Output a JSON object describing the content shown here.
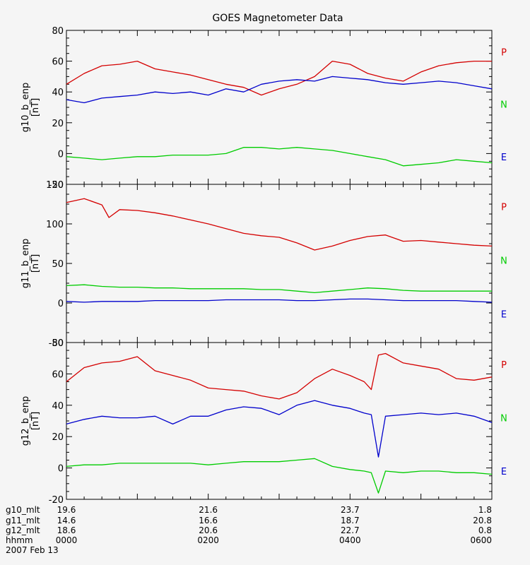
{
  "chart_data": [
    {
      "type": "line",
      "title": "GOES Magnetometer Data",
      "ylabel": "g10_b_enp",
      "yunit": "[nT]",
      "ylim": [
        -20,
        80
      ],
      "yticks": [
        -20,
        0,
        20,
        40,
        60,
        80
      ],
      "xlim": [
        0,
        6
      ],
      "series": [
        {
          "name": "P",
          "color": "#d40000",
          "x": [
            0,
            0.25,
            0.5,
            0.75,
            1,
            1.25,
            1.5,
            1.75,
            2,
            2.25,
            2.5,
            2.75,
            3,
            3.25,
            3.5,
            3.75,
            4,
            4.25,
            4.5,
            4.75,
            5,
            5.25,
            5.5,
            5.75,
            6
          ],
          "values": [
            45,
            52,
            57,
            58,
            60,
            55,
            53,
            51,
            48,
            45,
            43,
            38,
            42,
            45,
            50,
            60,
            58,
            52,
            49,
            47,
            53,
            57,
            59,
            60,
            60
          ]
        },
        {
          "name": "N",
          "color": "#00cc00",
          "x": [
            0,
            0.25,
            0.5,
            0.75,
            1,
            1.25,
            1.5,
            1.75,
            2,
            2.25,
            2.5,
            2.75,
            3,
            3.25,
            3.5,
            3.75,
            4,
            4.25,
            4.5,
            4.75,
            5,
            5.25,
            5.5,
            5.75,
            6
          ],
          "values": [
            -2,
            -3,
            -4,
            -3,
            -2,
            -2,
            -1,
            -1,
            -1,
            0,
            4,
            4,
            3,
            4,
            3,
            2,
            0,
            -2,
            -4,
            -8,
            -7,
            -6,
            -4,
            -5,
            -6
          ]
        },
        {
          "name": "E",
          "color": "#0000cc",
          "x": [
            0,
            0.25,
            0.5,
            0.75,
            1,
            1.25,
            1.5,
            1.75,
            2,
            2.25,
            2.5,
            2.75,
            3,
            3.25,
            3.5,
            3.75,
            4,
            4.25,
            4.5,
            4.75,
            5,
            5.25,
            5.5,
            5.75,
            6
          ],
          "values": [
            35,
            33,
            36,
            37,
            38,
            40,
            39,
            40,
            38,
            42,
            40,
            45,
            47,
            48,
            47,
            50,
            49,
            48,
            46,
            45,
            46,
            47,
            46,
            44,
            42
          ]
        }
      ]
    },
    {
      "type": "line",
      "ylabel": "g11_b_enp",
      "yunit": "[nT]",
      "ylim": [
        -50,
        150
      ],
      "yticks": [
        -50,
        0,
        50,
        100,
        150
      ],
      "xlim": [
        0,
        6
      ],
      "series": [
        {
          "name": "P",
          "color": "#d40000",
          "x": [
            0,
            0.25,
            0.5,
            0.6,
            0.75,
            1,
            1.25,
            1.5,
            1.75,
            2,
            2.25,
            2.5,
            2.75,
            3,
            3.25,
            3.5,
            3.75,
            4,
            4.25,
            4.5,
            4.75,
            5,
            5.25,
            5.5,
            5.75,
            6
          ],
          "values": [
            127,
            132,
            124,
            108,
            118,
            117,
            114,
            110,
            105,
            100,
            94,
            88,
            85,
            83,
            76,
            67,
            72,
            79,
            84,
            86,
            78,
            79,
            77,
            75,
            73,
            72
          ]
        },
        {
          "name": "N",
          "color": "#00cc00",
          "x": [
            0,
            0.25,
            0.5,
            0.75,
            1,
            1.25,
            1.5,
            1.75,
            2,
            2.25,
            2.5,
            2.75,
            3,
            3.25,
            3.5,
            3.75,
            4,
            4.25,
            4.5,
            4.75,
            5,
            5.25,
            5.5,
            5.75,
            6
          ],
          "values": [
            22,
            23,
            21,
            20,
            20,
            19,
            19,
            18,
            18,
            18,
            18,
            17,
            17,
            15,
            13,
            15,
            17,
            19,
            18,
            16,
            15,
            15,
            15,
            15,
            15
          ]
        },
        {
          "name": "E",
          "color": "#0000cc",
          "x": [
            0,
            0.25,
            0.5,
            0.75,
            1,
            1.25,
            1.5,
            1.75,
            2,
            2.25,
            2.5,
            2.75,
            3,
            3.25,
            3.5,
            3.75,
            4,
            4.25,
            4.5,
            4.75,
            5,
            5.25,
            5.5,
            5.75,
            6
          ],
          "values": [
            2,
            1,
            2,
            2,
            2,
            3,
            3,
            3,
            3,
            4,
            4,
            4,
            4,
            3,
            3,
            4,
            5,
            5,
            4,
            3,
            3,
            3,
            3,
            2,
            1
          ]
        }
      ]
    },
    {
      "type": "line",
      "ylabel": "g12_b_enp",
      "yunit": "[nT]",
      "ylim": [
        -20,
        80
      ],
      "yticks": [
        -20,
        0,
        20,
        40,
        60,
        80
      ],
      "xlim": [
        0,
        6
      ],
      "series": [
        {
          "name": "P",
          "color": "#d40000",
          "x": [
            0,
            0.25,
            0.5,
            0.75,
            1,
            1.25,
            1.5,
            1.75,
            2,
            2.25,
            2.5,
            2.75,
            3,
            3.25,
            3.5,
            3.75,
            4,
            4.2,
            4.3,
            4.4,
            4.5,
            4.75,
            5,
            5.25,
            5.5,
            5.75,
            6
          ],
          "values": [
            55,
            64,
            67,
            68,
            71,
            62,
            59,
            56,
            51,
            50,
            49,
            46,
            44,
            48,
            57,
            63,
            59,
            55,
            50,
            72,
            73,
            67,
            65,
            63,
            57,
            56,
            58
          ]
        },
        {
          "name": "N",
          "color": "#00cc00",
          "x": [
            0,
            0.25,
            0.5,
            0.75,
            1,
            1.25,
            1.5,
            1.75,
            2,
            2.25,
            2.5,
            2.75,
            3,
            3.25,
            3.5,
            3.75,
            4,
            4.2,
            4.3,
            4.4,
            4.5,
            4.75,
            5,
            5.25,
            5.5,
            5.75,
            6
          ],
          "values": [
            1,
            2,
            2,
            3,
            3,
            3,
            3,
            3,
            2,
            3,
            4,
            4,
            4,
            5,
            6,
            1,
            -1,
            -2,
            -3,
            -16,
            -2,
            -3,
            -2,
            -2,
            -3,
            -3,
            -4
          ]
        },
        {
          "name": "E",
          "color": "#0000cc",
          "x": [
            0,
            0.25,
            0.5,
            0.75,
            1,
            1.25,
            1.5,
            1.75,
            2,
            2.25,
            2.5,
            2.75,
            3,
            3.25,
            3.5,
            3.75,
            4,
            4.2,
            4.3,
            4.4,
            4.5,
            4.75,
            5,
            5.25,
            5.5,
            5.75,
            6
          ],
          "values": [
            28,
            31,
            33,
            32,
            32,
            33,
            28,
            33,
            33,
            37,
            39,
            38,
            34,
            40,
            43,
            40,
            38,
            35,
            34,
            7,
            33,
            34,
            35,
            34,
            35,
            33,
            29
          ]
        }
      ]
    }
  ],
  "time_axis": {
    "positions": [
      0,
      2,
      4,
      6
    ],
    "rows": [
      {
        "label": "g10_mlt",
        "values": [
          "19.6",
          "21.6",
          "23.7",
          "1.8"
        ]
      },
      {
        "label": "g11_mlt",
        "values": [
          "14.6",
          "16.6",
          "18.7",
          "20.8"
        ]
      },
      {
        "label": "g12_mlt",
        "values": [
          "18.6",
          "20.6",
          "22.7",
          "0.8"
        ]
      },
      {
        "label": "hhmm",
        "values": [
          "0000",
          "0200",
          "0400",
          "0600"
        ]
      }
    ],
    "date": "2007 Feb 13"
  }
}
